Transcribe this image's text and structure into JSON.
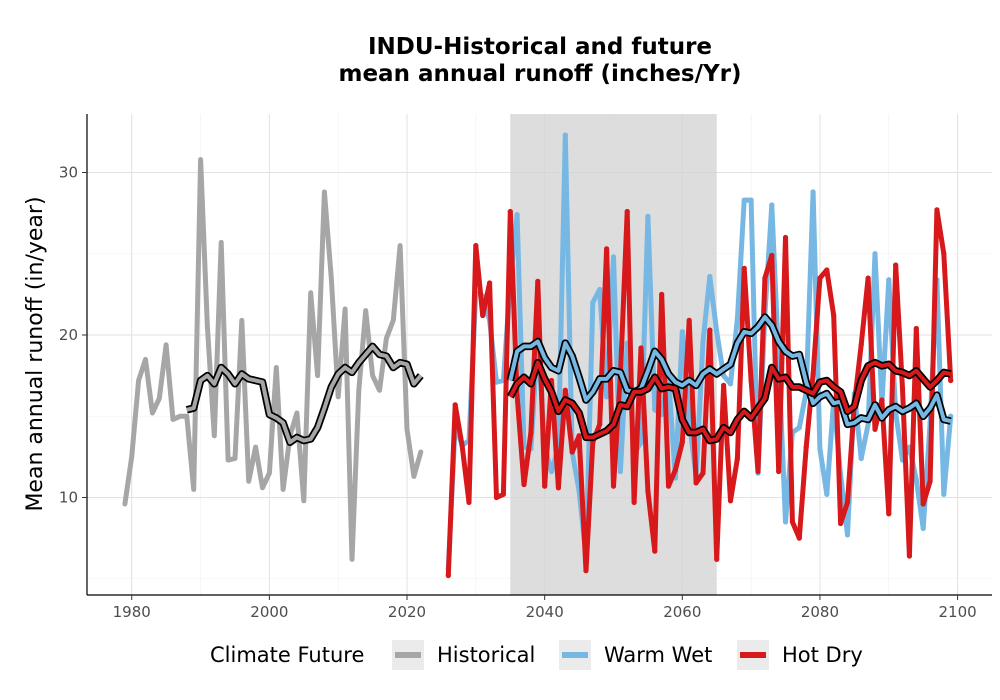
{
  "chart_data": {
    "type": "line",
    "title_line1": "INDU-Historical and future",
    "title_line2": "mean annual runoff (inches/Yr)",
    "xlabel": "",
    "ylabel": "Mean annual runoff (in/year)",
    "xlim": [
      1973.5,
      2105
    ],
    "ylim": [
      4,
      33.6
    ],
    "x_ticks": [
      1980,
      2000,
      2020,
      2040,
      2060,
      2080,
      2100
    ],
    "y_ticks": [
      10,
      20,
      30
    ],
    "grid": true,
    "shaded_period": [
      2035,
      2065
    ],
    "legend_title": "Climate Future",
    "legend_position": "bottom",
    "series": [
      {
        "name": "Historical",
        "color": "#a6a6a6",
        "x": [
          1979,
          1980,
          1981,
          1982,
          1983,
          1984,
          1985,
          1986,
          1987,
          1988,
          1989,
          1990,
          1991,
          1992,
          1993,
          1994,
          1995,
          1996,
          1997,
          1998,
          1999,
          2000,
          2001,
          2002,
          2003,
          2004,
          2005,
          2006,
          2007,
          2008,
          2009,
          2010,
          2011,
          2012,
          2013,
          2014,
          2015,
          2016,
          2017,
          2018,
          2019,
          2020,
          2021,
          2022
        ],
        "y": [
          9.6,
          12.5,
          17.2,
          18.5,
          15.2,
          16.1,
          19.4,
          14.8,
          15.0,
          15.0,
          10.5,
          30.8,
          20.5,
          13.8,
          25.7,
          12.3,
          12.4,
          20.9,
          11.0,
          13.1,
          10.6,
          11.5,
          18.0,
          10.5,
          13.8,
          15.2,
          9.8,
          22.6,
          17.5,
          28.8,
          23.5,
          16.2,
          21.6,
          6.2,
          16.6,
          21.5,
          17.5,
          16.6,
          19.8,
          20.9,
          25.5,
          14.2,
          11.3,
          12.8
        ],
        "smooth_x": [
          1988,
          1989,
          1990,
          1991,
          1992,
          1993,
          1994,
          1995,
          1996,
          1997,
          1998,
          1999,
          2000,
          2001,
          2002,
          2003,
          2004,
          2005,
          2006,
          2007,
          2008,
          2009,
          2010,
          2011,
          2012,
          2013,
          2014,
          2015,
          2016,
          2017,
          2018,
          2019,
          2020,
          2021,
          2022
        ],
        "smooth_y": [
          15.4,
          15.5,
          17.2,
          17.5,
          17.0,
          18.0,
          17.6,
          17.0,
          17.6,
          17.3,
          17.2,
          17.1,
          15.1,
          14.9,
          14.6,
          13.4,
          13.7,
          13.5,
          13.6,
          14.3,
          15.5,
          16.8,
          17.6,
          18.0,
          17.7,
          18.3,
          18.8,
          19.3,
          18.8,
          18.7,
          18.0,
          18.3,
          18.2,
          17.0,
          17.5
        ]
      },
      {
        "name": "Warm Wet",
        "color": "#76b8e3",
        "x": [
          2026,
          2027,
          2028,
          2029,
          2030,
          2031,
          2032,
          2033,
          2034,
          2035,
          2036,
          2037,
          2038,
          2039,
          2040,
          2041,
          2042,
          2043,
          2044,
          2045,
          2046,
          2047,
          2048,
          2049,
          2050,
          2051,
          2052,
          2053,
          2054,
          2055,
          2056,
          2057,
          2058,
          2059,
          2060,
          2061,
          2062,
          2063,
          2064,
          2065,
          2066,
          2067,
          2068,
          2069,
          2070,
          2071,
          2072,
          2073,
          2074,
          2075,
          2076,
          2077,
          2078,
          2079,
          2080,
          2081,
          2082,
          2083,
          2084,
          2085,
          2086,
          2087,
          2088,
          2089,
          2090,
          2091,
          2092,
          2093,
          2094,
          2095,
          2096,
          2097,
          2098,
          2099
        ],
        "y": [
          5.6,
          14.5,
          13.2,
          13.5,
          22.6,
          22.4,
          20.9,
          17.1,
          17.2,
          23.3,
          27.4,
          13.1,
          13.0,
          19.8,
          13.1,
          11.6,
          13.1,
          32.3,
          12.8,
          10.4,
          6.4,
          22.0,
          22.8,
          16.2,
          24.8,
          11.6,
          19.5,
          12.7,
          13.4,
          27.3,
          15.4,
          15.1,
          17.4,
          11.2,
          20.2,
          14.7,
          11.3,
          19.6,
          23.6,
          20.2,
          17.5,
          17.0,
          21.0,
          28.3,
          28.3,
          11.5,
          21.3,
          28.0,
          18.4,
          8.5,
          14.0,
          14.3,
          16.5,
          28.8,
          13.0,
          10.2,
          16.0,
          11.4,
          7.7,
          16.4,
          12.4,
          14.5,
          25.0,
          15.8,
          23.4,
          15.2,
          12.3,
          13.1,
          11.1,
          8.1,
          14.6,
          23.4,
          10.2,
          15.0
        ],
        "smooth_x": [
          2035,
          2036,
          2037,
          2038,
          2039,
          2040,
          2041,
          2042,
          2043,
          2044,
          2045,
          2046,
          2047,
          2048,
          2049,
          2050,
          2051,
          2052,
          2053,
          2054,
          2055,
          2056,
          2057,
          2058,
          2059,
          2060,
          2061,
          2062,
          2063,
          2064,
          2065,
          2066,
          2067,
          2068,
          2069,
          2070,
          2071,
          2072,
          2073,
          2074,
          2075,
          2076,
          2077,
          2078,
          2079,
          2080,
          2081,
          2082,
          2083,
          2084,
          2085,
          2086,
          2087,
          2088,
          2089,
          2090,
          2091,
          2092,
          2093,
          2094,
          2095,
          2096,
          2097,
          2098,
          2099
        ],
        "smooth_y": [
          17.2,
          19.0,
          19.3,
          19.3,
          19.6,
          18.6,
          18.0,
          17.8,
          19.5,
          18.7,
          17.4,
          16.0,
          16.5,
          17.3,
          17.3,
          17.8,
          17.7,
          16.6,
          16.5,
          16.7,
          17.8,
          19.0,
          18.5,
          17.6,
          17.1,
          16.9,
          17.2,
          16.9,
          17.6,
          17.9,
          17.6,
          17.9,
          18.2,
          19.5,
          20.2,
          20.1,
          20.5,
          21.1,
          20.6,
          19.6,
          19.0,
          18.7,
          18.8,
          17.1,
          15.8,
          16.2,
          16.4,
          15.8,
          15.9,
          14.5,
          14.6,
          14.9,
          14.8,
          15.7,
          14.9,
          15.4,
          15.6,
          15.3,
          15.5,
          15.8,
          15.0,
          15.5,
          16.3,
          14.8,
          14.7
        ]
      },
      {
        "name": "Hot Dry",
        "color": "#d7191c",
        "x": [
          2026,
          2027,
          2028,
          2029,
          2030,
          2031,
          2032,
          2033,
          2034,
          2035,
          2036,
          2037,
          2038,
          2039,
          2040,
          2041,
          2042,
          2043,
          2044,
          2045,
          2046,
          2047,
          2048,
          2049,
          2050,
          2051,
          2052,
          2053,
          2054,
          2055,
          2056,
          2057,
          2058,
          2059,
          2060,
          2061,
          2062,
          2063,
          2064,
          2065,
          2066,
          2067,
          2068,
          2069,
          2070,
          2071,
          2072,
          2073,
          2074,
          2075,
          2076,
          2077,
          2078,
          2079,
          2080,
          2081,
          2082,
          2083,
          2084,
          2085,
          2086,
          2087,
          2088,
          2089,
          2090,
          2091,
          2092,
          2093,
          2094,
          2095,
          2096,
          2097,
          2098,
          2099
        ],
        "y": [
          5.2,
          15.7,
          13.2,
          9.7,
          25.5,
          21.2,
          23.2,
          10.0,
          10.2,
          27.6,
          16.3,
          10.8,
          14.0,
          23.3,
          10.7,
          17.2,
          10.6,
          16.6,
          12.8,
          13.8,
          5.5,
          13.4,
          14.5,
          25.3,
          10.7,
          17.5,
          27.6,
          9.7,
          19.2,
          10.4,
          6.7,
          22.5,
          10.7,
          11.7,
          13.4,
          20.9,
          10.9,
          11.5,
          20.3,
          6.2,
          16.9,
          9.8,
          12.4,
          24.1,
          17.2,
          11.6,
          23.5,
          24.9,
          11.6,
          26.0,
          8.5,
          7.5,
          13.1,
          17.6,
          23.5,
          24.0,
          21.2,
          8.4,
          9.7,
          15.8,
          19.4,
          23.5,
          14.2,
          16.0,
          9.0,
          24.3,
          16.7,
          6.4,
          20.4,
          9.6,
          11.0,
          27.7,
          25.0,
          17.2
        ],
        "smooth_x": [
          2035,
          2036,
          2037,
          2038,
          2039,
          2040,
          2041,
          2042,
          2043,
          2044,
          2045,
          2046,
          2047,
          2048,
          2049,
          2050,
          2051,
          2052,
          2053,
          2054,
          2055,
          2056,
          2057,
          2058,
          2059,
          2060,
          2061,
          2062,
          2063,
          2064,
          2065,
          2066,
          2067,
          2068,
          2069,
          2070,
          2071,
          2072,
          2073,
          2074,
          2075,
          2076,
          2077,
          2078,
          2079,
          2080,
          2081,
          2082,
          2083,
          2084,
          2085,
          2086,
          2087,
          2088,
          2089,
          2090,
          2091,
          2092,
          2093,
          2094,
          2095,
          2096,
          2097,
          2098,
          2099
        ],
        "smooth_y": [
          16.2,
          17.0,
          17.4,
          17.0,
          18.3,
          17.3,
          16.5,
          15.3,
          16.0,
          15.8,
          15.2,
          13.7,
          13.7,
          13.9,
          14.1,
          14.5,
          15.7,
          15.6,
          16.5,
          16.5,
          16.7,
          17.4,
          16.7,
          16.8,
          16.7,
          14.8,
          14.0,
          14.0,
          14.2,
          13.5,
          13.6,
          14.3,
          14.0,
          14.8,
          15.3,
          14.9,
          15.5,
          16.1,
          18.0,
          17.3,
          17.4,
          16.8,
          16.8,
          16.6,
          16.4,
          17.1,
          17.2,
          16.8,
          16.5,
          15.3,
          15.6,
          17.2,
          18.1,
          18.3,
          18.1,
          18.2,
          17.8,
          17.7,
          17.5,
          17.8,
          17.3,
          16.8,
          17.2,
          17.7,
          17.6
        ]
      }
    ]
  }
}
